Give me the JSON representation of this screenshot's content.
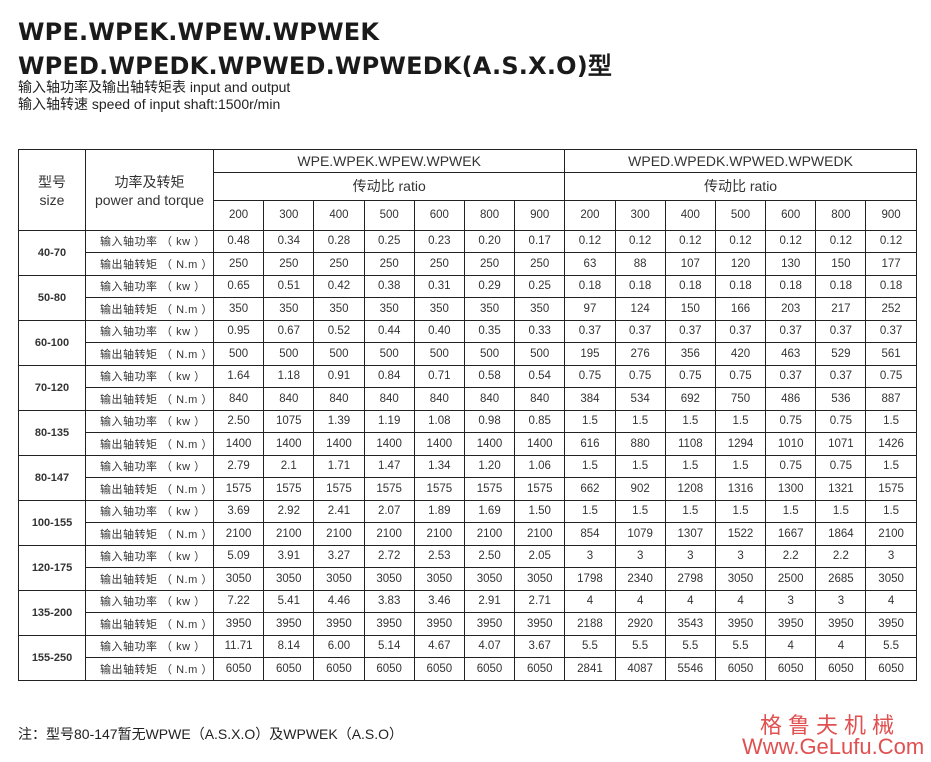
{
  "title_line1": "WPE.WPEK.WPEW.WPWEK",
  "title_line2": "WPED.WPEDK.WPWED.WPWEDK(A.S.X.O)型",
  "subtitle1": "输入轴功率及输出轴转矩表  input and output",
  "subtitle2": "输入轴转速 speed of input shaft:1500r/min",
  "table": {
    "size_header": "型号",
    "size_header_en": "size",
    "power_header": "功率及转矩",
    "power_header_en": "power and torque",
    "group1": "WPE.WPEK.WPEW.WPWEK",
    "group2": "WPED.WPEDK.WPWED.WPWEDK",
    "ratio_label": "传动比  ratio",
    "ratios": [
      "200",
      "300",
      "400",
      "500",
      "600",
      "800",
      "900"
    ],
    "input_label": "输入轴功率 （ kw ）",
    "output_label": "输出轴转矩 （ N.m ）",
    "rows": [
      {
        "size": "40-70",
        "in1": [
          "0.48",
          "0.34",
          "0.28",
          "0.25",
          "0.23",
          "0.20",
          "0.17"
        ],
        "in2": [
          "0.12",
          "0.12",
          "0.12",
          "0.12",
          "0.12",
          "0.12",
          "0.12"
        ],
        "out1": [
          "250",
          "250",
          "250",
          "250",
          "250",
          "250",
          "250"
        ],
        "out2": [
          "63",
          "88",
          "107",
          "120",
          "130",
          "150",
          "177"
        ]
      },
      {
        "size": "50-80",
        "in1": [
          "0.65",
          "0.51",
          "0.42",
          "0.38",
          "0.31",
          "0.29",
          "0.25"
        ],
        "in2": [
          "0.18",
          "0.18",
          "0.18",
          "0.18",
          "0.18",
          "0.18",
          "0.18"
        ],
        "out1": [
          "350",
          "350",
          "350",
          "350",
          "350",
          "350",
          "350"
        ],
        "out2": [
          "97",
          "124",
          "150",
          "166",
          "203",
          "217",
          "252"
        ]
      },
      {
        "size": "60-100",
        "in1": [
          "0.95",
          "0.67",
          "0.52",
          "0.44",
          "0.40",
          "0.35",
          "0.33"
        ],
        "in2": [
          "0.37",
          "0.37",
          "0.37",
          "0.37",
          "0.37",
          "0.37",
          "0.37"
        ],
        "out1": [
          "500",
          "500",
          "500",
          "500",
          "500",
          "500",
          "500"
        ],
        "out2": [
          "195",
          "276",
          "356",
          "420",
          "463",
          "529",
          "561"
        ]
      },
      {
        "size": "70-120",
        "in1": [
          "1.64",
          "1.18",
          "0.91",
          "0.84",
          "0.71",
          "0.58",
          "0.54"
        ],
        "in2": [
          "0.75",
          "0.75",
          "0.75",
          "0.75",
          "0.37",
          "0.37",
          "0.75"
        ],
        "out1": [
          "840",
          "840",
          "840",
          "840",
          "840",
          "840",
          "840"
        ],
        "out2": [
          "384",
          "534",
          "692",
          "750",
          "486",
          "536",
          "887"
        ]
      },
      {
        "size": "80-135",
        "in1": [
          "2.50",
          "1075",
          "1.39",
          "1.19",
          "1.08",
          "0.98",
          "0.85"
        ],
        "in2": [
          "1.5",
          "1.5",
          "1.5",
          "1.5",
          "0.75",
          "0.75",
          "1.5"
        ],
        "out1": [
          "1400",
          "1400",
          "1400",
          "1400",
          "1400",
          "1400",
          "1400"
        ],
        "out2": [
          "616",
          "880",
          "1108",
          "1294",
          "1010",
          "1071",
          "1426"
        ]
      },
      {
        "size": "80-147",
        "in1": [
          "2.79",
          "2.1",
          "1.71",
          "1.47",
          "1.34",
          "1.20",
          "1.06"
        ],
        "in2": [
          "1.5",
          "1.5",
          "1.5",
          "1.5",
          "0.75",
          "0.75",
          "1.5"
        ],
        "out1": [
          "1575",
          "1575",
          "1575",
          "1575",
          "1575",
          "1575",
          "1575"
        ],
        "out2": [
          "662",
          "902",
          "1208",
          "1316",
          "1300",
          "1321",
          "1575"
        ]
      },
      {
        "size": "100-155",
        "in1": [
          "3.69",
          "2.92",
          "2.41",
          "2.07",
          "1.89",
          "1.69",
          "1.50"
        ],
        "in2": [
          "1.5",
          "1.5",
          "1.5",
          "1.5",
          "1.5",
          "1.5",
          "1.5"
        ],
        "out1": [
          "2100",
          "2100",
          "2100",
          "2100",
          "2100",
          "2100",
          "2100"
        ],
        "out2": [
          "854",
          "1079",
          "1307",
          "1522",
          "1667",
          "1864",
          "2100"
        ]
      },
      {
        "size": "120-175",
        "in1": [
          "5.09",
          "3.91",
          "3.27",
          "2.72",
          "2.53",
          "2.50",
          "2.05"
        ],
        "in2": [
          "3",
          "3",
          "3",
          "3",
          "2.2",
          "2.2",
          "3"
        ],
        "out1": [
          "3050",
          "3050",
          "3050",
          "3050",
          "3050",
          "3050",
          "3050"
        ],
        "out2": [
          "1798",
          "2340",
          "2798",
          "3050",
          "2500",
          "2685",
          "3050"
        ]
      },
      {
        "size": "135-200",
        "in1": [
          "7.22",
          "5.41",
          "4.46",
          "3.83",
          "3.46",
          "2.91",
          "2.71"
        ],
        "in2": [
          "4",
          "4",
          "4",
          "4",
          "3",
          "3",
          "4"
        ],
        "out1": [
          "3950",
          "3950",
          "3950",
          "3950",
          "3950",
          "3950",
          "3950"
        ],
        "out2": [
          "2188",
          "2920",
          "3543",
          "3950",
          "3950",
          "3950",
          "3950"
        ]
      },
      {
        "size": "155-250",
        "in1": [
          "11.71",
          "8.14",
          "6.00",
          "5.14",
          "4.67",
          "4.07",
          "3.67"
        ],
        "in2": [
          "5.5",
          "5.5",
          "5.5",
          "5.5",
          "4",
          "4",
          "5.5"
        ],
        "out1": [
          "6050",
          "6050",
          "6050",
          "6050",
          "6050",
          "6050",
          "6050"
        ],
        "out2": [
          "2841",
          "4087",
          "5546",
          "6050",
          "6050",
          "6050",
          "6050"
        ]
      }
    ]
  },
  "note": "注：型号80-147暂无WPWE（A.S.X.O）及WPWEK（A.S.O）",
  "watermark_cn": "格鲁夫机械",
  "watermark_url": "Www.GeLufu.Com",
  "colors": {
    "watermark": "#e05050",
    "border": "#222222"
  }
}
